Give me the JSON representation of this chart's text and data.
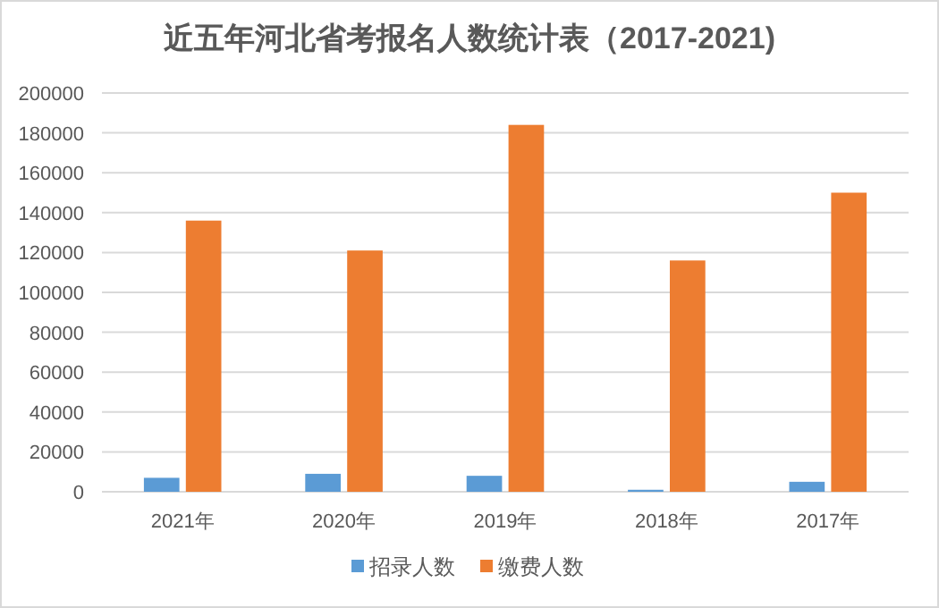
{
  "chart_data": {
    "type": "bar",
    "title": "近五年河北省考报名人数统计表（2017-2021)",
    "categories": [
      "2021年",
      "2020年",
      "2019年",
      "2018年",
      "2017年"
    ],
    "series": [
      {
        "name": "招录人数",
        "color": "#5b9bd5",
        "values": [
          7000,
          9000,
          8000,
          1000,
          5000
        ]
      },
      {
        "name": "缴费人数",
        "color": "#ed7d31",
        "values": [
          136000,
          121000,
          184000,
          116000,
          150000
        ]
      }
    ],
    "ylim": [
      0,
      200000
    ],
    "yticks": [
      0,
      20000,
      40000,
      60000,
      80000,
      100000,
      120000,
      140000,
      160000,
      180000,
      200000
    ],
    "grid": "y",
    "legend": "bottom"
  }
}
